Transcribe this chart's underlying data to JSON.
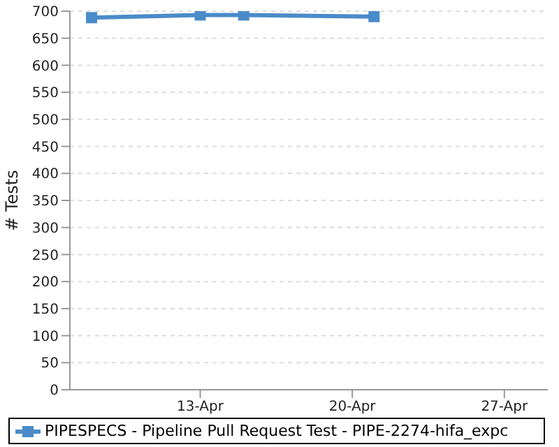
{
  "chart_data": {
    "type": "line",
    "ylabel": "# Tests",
    "x": [
      "--04-08",
      "--04-13",
      "--04-15",
      "--04-21"
    ],
    "series": [
      {
        "name": "PIPESPECS - Pipeline Pull Request Test - PIPE-2274-hifa_expc",
        "color": "#4a8bc9",
        "values": [
          688,
          693,
          693,
          690
        ]
      }
    ],
    "xlim": [
      "--04-07",
      "--04-29"
    ],
    "xticks": [
      {
        "value": "--04-13",
        "label": "13-Apr"
      },
      {
        "value": "--04-20",
        "label": "20-Apr"
      },
      {
        "value": "--04-27",
        "label": "27-Apr"
      }
    ],
    "ylim": [
      0,
      700
    ],
    "yticks": [
      0,
      50,
      100,
      150,
      200,
      250,
      300,
      350,
      400,
      450,
      500,
      550,
      600,
      650,
      700
    ],
    "grid": "y",
    "legend": "bottom",
    "marker": "square",
    "line_style": "solid"
  }
}
